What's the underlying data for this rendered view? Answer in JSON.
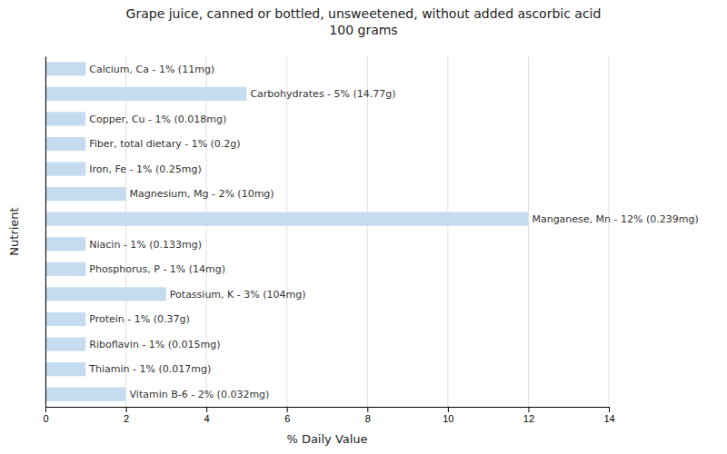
{
  "chart_data": {
    "type": "bar",
    "orientation": "horizontal",
    "title": "Grape juice, canned or bottled, unsweetened, without added ascorbic acid\n100 grams",
    "x_label": "% Daily Value",
    "y_label": "Nutrient",
    "categories": [
      "Calcium, Ca - 1% (11mg)",
      "Carbohydrates - 5% (14.77g)",
      "Copper, Cu - 1% (0.018mg)",
      "Fiber, total dietary - 1% (0.2g)",
      "Iron, Fe - 1% (0.25mg)",
      "Magnesium, Mg - 2% (10mg)",
      "Manganese, Mn - 12% (0.239mg)",
      "Niacin - 1% (0.133mg)",
      "Phosphorus, P - 1% (14mg)",
      "Potassium, K - 3% (104mg)",
      "Protein - 1% (0.37g)",
      "Riboflavin - 1% (0.015mg)",
      "Thiamin - 1% (0.017mg)",
      "Vitamin B-6 - 2% (0.032mg)"
    ],
    "values": [
      1,
      5,
      1,
      1,
      1,
      2,
      12,
      1,
      1,
      3,
      1,
      1,
      1,
      2
    ],
    "color": "#c5dcf0",
    "xlim": [
      0,
      14
    ],
    "xticks": [
      0,
      2,
      4,
      6,
      8,
      10,
      12,
      14
    ],
    "grid": true,
    "tick_labels": "x"
  }
}
